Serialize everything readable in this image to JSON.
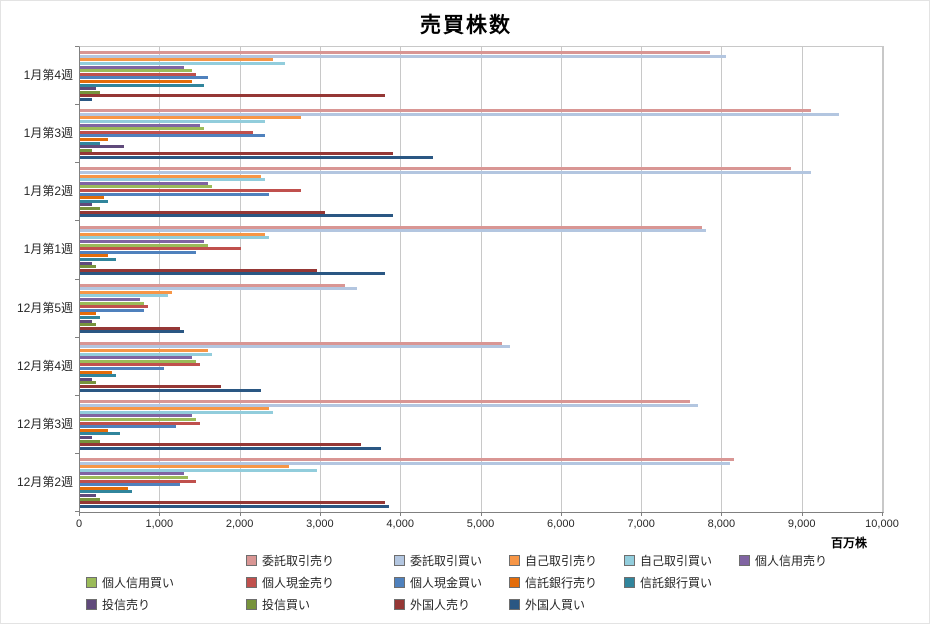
{
  "chart_data": {
    "type": "bar",
    "orientation": "horizontal",
    "title": "売買株数",
    "unit": "百万株",
    "categories": [
      "1月第4週",
      "1月第3週",
      "1月第2週",
      "1月第1週",
      "12月第5週",
      "12月第4週",
      "12月第3週",
      "12月第2週"
    ],
    "xlim": [
      0,
      10000
    ],
    "x_tick_values": [
      0,
      1000,
      2000,
      3000,
      4000,
      5000,
      6000,
      7000,
      8000,
      9000,
      10000
    ],
    "x_tick_labels": [
      "0",
      "1,000",
      "2,000",
      "3,000",
      "4,000",
      "5,000",
      "6,000",
      "7,000",
      "8,000",
      "9,000",
      "10,000"
    ],
    "grid": true,
    "legend_position": "bottom",
    "series": [
      {
        "name": "委託取引売り",
        "color": "#d99694",
        "values": [
          7850,
          9100,
          8850,
          7750,
          3300,
          5250,
          7600,
          8150
        ]
      },
      {
        "name": "委託取引買い",
        "color": "#b3c6e0",
        "values": [
          8050,
          9450,
          9100,
          7800,
          3450,
          5350,
          7700,
          8100
        ]
      },
      {
        "name": "自己取引売り",
        "color": "#f79646",
        "values": [
          2400,
          2750,
          2250,
          2300,
          1150,
          1600,
          2350,
          2600
        ]
      },
      {
        "name": "自己取引買い",
        "color": "#92cddc",
        "values": [
          2550,
          2300,
          2300,
          2350,
          1100,
          1650,
          2400,
          2950
        ]
      },
      {
        "name": "個人信用売り",
        "color": "#8064a2",
        "values": [
          1300,
          1500,
          1600,
          1550,
          750,
          1400,
          1400,
          1300
        ]
      },
      {
        "name": "個人信用買い",
        "color": "#9bbb59",
        "values": [
          1400,
          1550,
          1650,
          1600,
          800,
          1450,
          1450,
          1350
        ]
      },
      {
        "name": "個人現金売り",
        "color": "#c0504d",
        "values": [
          1450,
          2150,
          2750,
          2000,
          850,
          1500,
          1500,
          1450
        ]
      },
      {
        "name": "個人現金買い",
        "color": "#4f81bd",
        "values": [
          1600,
          2300,
          2350,
          1450,
          800,
          1050,
          1200,
          1250
        ]
      },
      {
        "name": "信託銀行売り",
        "color": "#e36c0a",
        "values": [
          1400,
          350,
          300,
          350,
          200,
          400,
          350,
          600
        ]
      },
      {
        "name": "信託銀行買い",
        "color": "#31859c",
        "values": [
          1550,
          250,
          350,
          450,
          250,
          450,
          500,
          650
        ]
      },
      {
        "name": "投信売り",
        "color": "#604a7b",
        "values": [
          200,
          550,
          150,
          150,
          150,
          150,
          150,
          200
        ]
      },
      {
        "name": "投信買い",
        "color": "#77933c",
        "values": [
          250,
          150,
          250,
          200,
          200,
          200,
          250,
          250
        ]
      },
      {
        "name": "外国人売り",
        "color": "#953735",
        "values": [
          3800,
          3900,
          3050,
          2950,
          1250,
          1750,
          3500,
          3800
        ]
      },
      {
        "name": "外国人買い",
        "color": "#2a5783",
        "values": [
          150,
          4400,
          3900,
          3800,
          1300,
          2250,
          3750,
          3850
        ]
      }
    ]
  }
}
